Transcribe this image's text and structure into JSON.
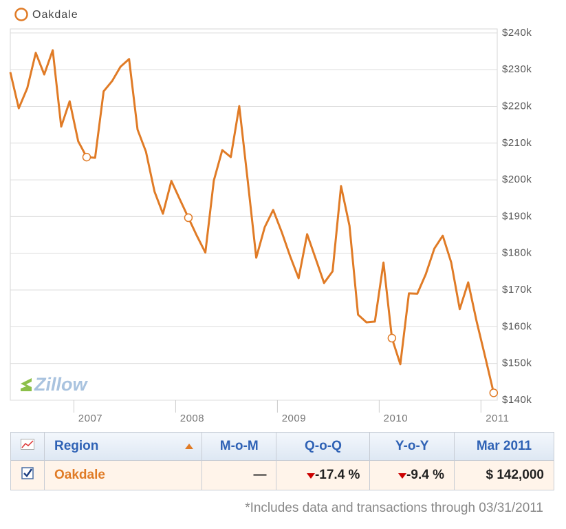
{
  "chart_data": {
    "type": "line",
    "x": [
      2006.375,
      2006.458,
      2006.542,
      2006.625,
      2006.708,
      2006.792,
      2006.875,
      2006.958,
      2007.042,
      2007.125,
      2007.208,
      2007.292,
      2007.375,
      2007.458,
      2007.542,
      2007.625,
      2007.708,
      2007.792,
      2007.875,
      2007.958,
      2008.042,
      2008.125,
      2008.208,
      2008.292,
      2008.375,
      2008.458,
      2008.542,
      2008.625,
      2008.708,
      2008.792,
      2008.875,
      2008.958,
      2009.042,
      2009.125,
      2009.208,
      2009.292,
      2009.375,
      2009.458,
      2009.542,
      2009.625,
      2009.708,
      2009.792,
      2009.875,
      2009.958,
      2010.042,
      2010.125,
      2010.208,
      2010.292,
      2010.375,
      2010.458,
      2010.542,
      2010.625,
      2010.708,
      2010.792,
      2010.875,
      2010.958,
      2011.042,
      2011.125
    ],
    "series": [
      {
        "name": "Oakdale",
        "color": "#e07b26",
        "values": [
          229300,
          219500,
          225000,
          234600,
          228700,
          235300,
          214500,
          221400,
          210500,
          206200,
          206000,
          224100,
          226900,
          230800,
          232900,
          213700,
          207700,
          196800,
          190800,
          199700,
          194600,
          189700,
          184800,
          180200,
          199800,
          208100,
          206200,
          220100,
          199800,
          178800,
          187100,
          191800,
          185800,
          179200,
          173200,
          185200,
          178600,
          171900,
          175100,
          198300,
          187500,
          163300,
          161200,
          161400,
          177500,
          156900,
          149800,
          169100,
          169000,
          174300,
          181300,
          184800,
          177500,
          164800,
          172100,
          161400,
          151800,
          142000
        ]
      }
    ],
    "marker_indices": [
      9,
      21,
      45,
      57
    ],
    "xlim": [
      2006.375,
      2011.16
    ],
    "xticks": [
      2007,
      2008,
      2009,
      2010,
      2011
    ],
    "ylim": [
      140000,
      241100
    ],
    "yticks": [
      {
        "value": 140000,
        "label": "$140k"
      },
      {
        "value": 150000,
        "label": "$150k"
      },
      {
        "value": 160000,
        "label": "$160k"
      },
      {
        "value": 170000,
        "label": "$170k"
      },
      {
        "value": 180000,
        "label": "$180k"
      },
      {
        "value": 190000,
        "label": "$190k"
      },
      {
        "value": 200000,
        "label": "$200k"
      },
      {
        "value": 210000,
        "label": "$210k"
      },
      {
        "value": 220000,
        "label": "$220k"
      },
      {
        "value": 230000,
        "label": "$230k"
      },
      {
        "value": 240000,
        "label": "$240k"
      }
    ],
    "grid": true,
    "legend": "top-left"
  },
  "logo": "Zillow",
  "table": {
    "header": [
      "Region",
      "M-o-M",
      "Q-o-Q",
      "Y-o-Y",
      "Mar 2011"
    ],
    "rows": [
      [
        "Oakdale",
        "—",
        "-17.4 %",
        "-9.4 %",
        "$ 142,000"
      ]
    ]
  },
  "footnote": "*Includes data and transactions through 03/31/2011"
}
